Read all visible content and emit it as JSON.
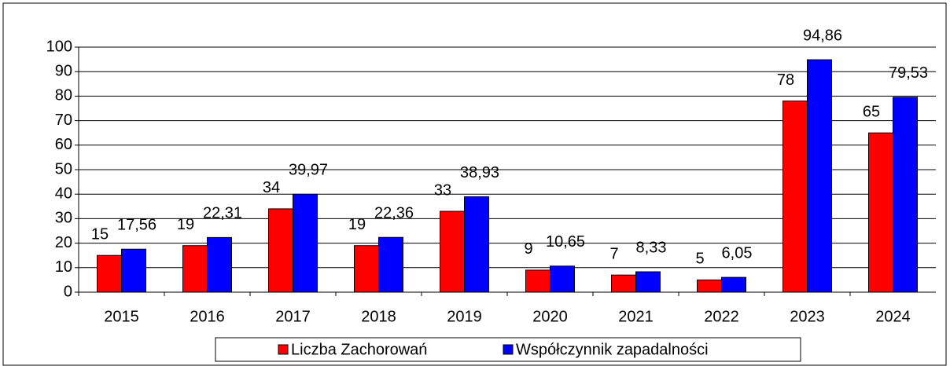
{
  "chart_data": {
    "type": "bar",
    "categories": [
      "2015",
      "2016",
      "2017",
      "2018",
      "2019",
      "2020",
      "2021",
      "2022",
      "2023",
      "2024"
    ],
    "series": [
      {
        "name": "Liczba Zachorowań",
        "color": "#ff0000",
        "values": [
          15,
          19,
          34,
          19,
          33,
          9,
          7,
          5,
          78,
          65
        ]
      },
      {
        "name": "Współczynnik zapadalności",
        "color": "#0000ff",
        "values": [
          17.56,
          22.31,
          39.97,
          22.36,
          38.93,
          10.65,
          8.33,
          6.05,
          94.86,
          79.53
        ],
        "value_labels": [
          "17,56",
          "22,31",
          "39,97",
          "22,36",
          "38,93",
          "10,65",
          "8,33",
          "6,05",
          "94,86",
          "79,53"
        ]
      }
    ],
    "ylim": [
      0,
      100
    ],
    "yticks": [
      0,
      10,
      20,
      30,
      40,
      50,
      60,
      70,
      80,
      90,
      100
    ],
    "grid": true,
    "legend": "bottom"
  }
}
